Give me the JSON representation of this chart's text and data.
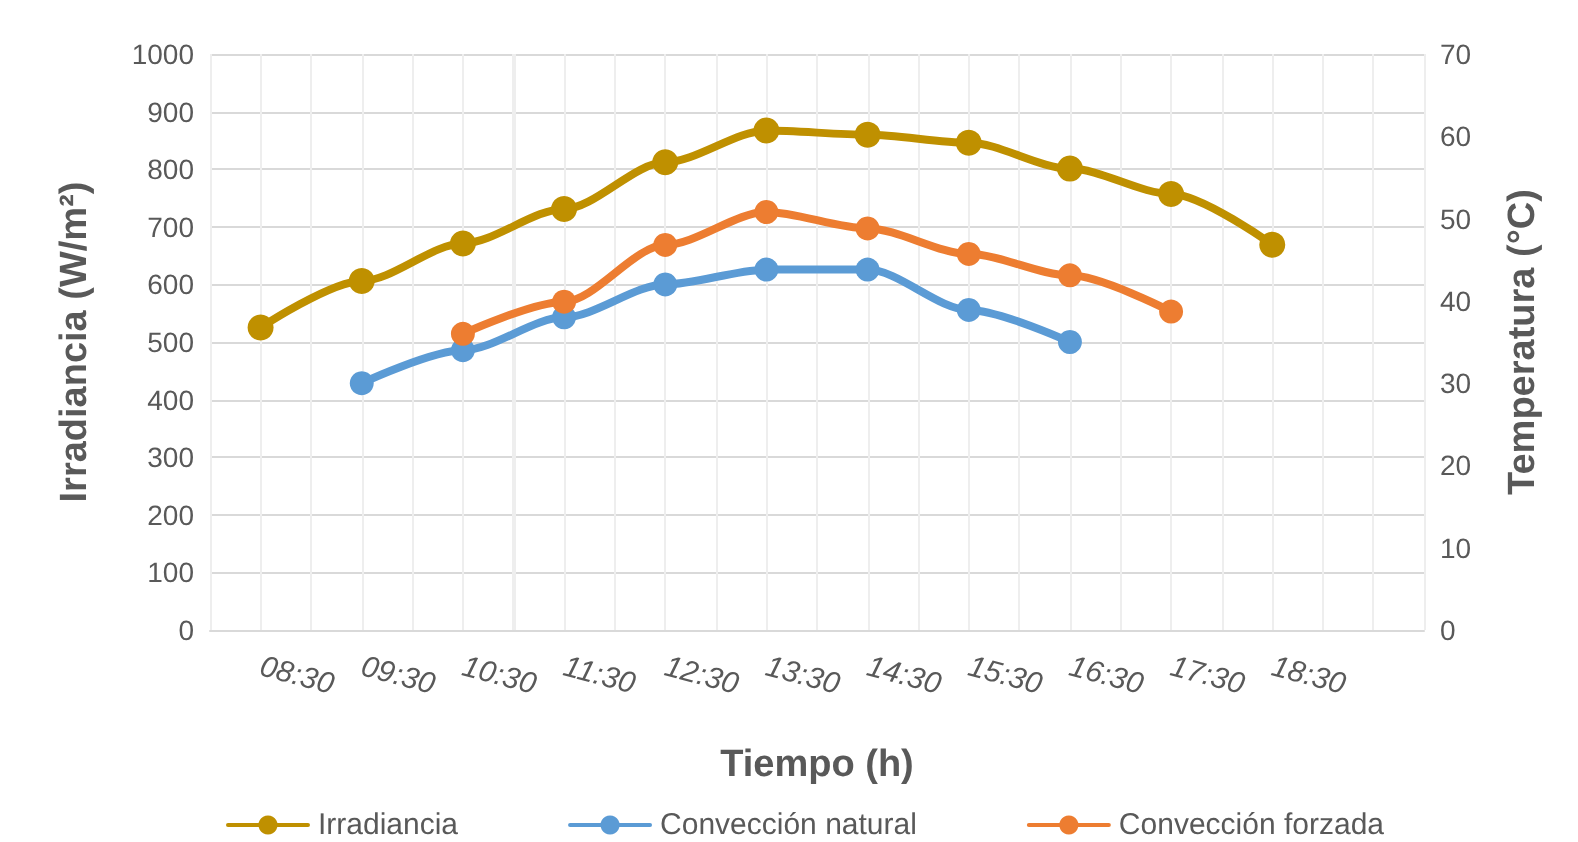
{
  "chart_data": {
    "type": "line",
    "xlabel": "Tiempo (h)",
    "ylabel": "Irradiancia (W/m²)",
    "y2label": "Temperatura (°C)",
    "categories": [
      "08:30",
      "09:30",
      "10:30",
      "11:30",
      "12:30",
      "13:30",
      "14:30",
      "15:30",
      "16:30",
      "17:30",
      "18:30",
      null
    ],
    "series": [
      {
        "name": "Irradiancia",
        "color": "#bf9000",
        "values": [
          525,
          606,
          671,
          731,
          812,
          867,
          860,
          846,
          801,
          757,
          669,
          null
        ]
      },
      {
        "name": "Convección natural",
        "color": "#5b9bd5",
        "axis": "y2",
        "values": [
          null,
          30.0,
          34.0,
          38.0,
          42.0,
          43.8,
          43.8,
          38.9,
          35.0,
          null,
          null,
          null
        ]
      },
      {
        "name": "Convección forzada",
        "color": "#ed7d31",
        "axis": "y2",
        "values": [
          null,
          null,
          36.0,
          39.9,
          46.8,
          50.8,
          48.8,
          45.7,
          43.1,
          38.7,
          null,
          null
        ]
      }
    ],
    "ylim": [
      0,
      1000
    ],
    "yticks": [
      0,
      100,
      200,
      300,
      400,
      500,
      600,
      700,
      800,
      900,
      1000
    ],
    "y2lim": [
      0,
      70
    ],
    "y2ticks": [
      0,
      10,
      20,
      30,
      40,
      50,
      60,
      70
    ],
    "grid": true,
    "legend": "bottom",
    "marker": "circle",
    "line_style": "solid"
  }
}
